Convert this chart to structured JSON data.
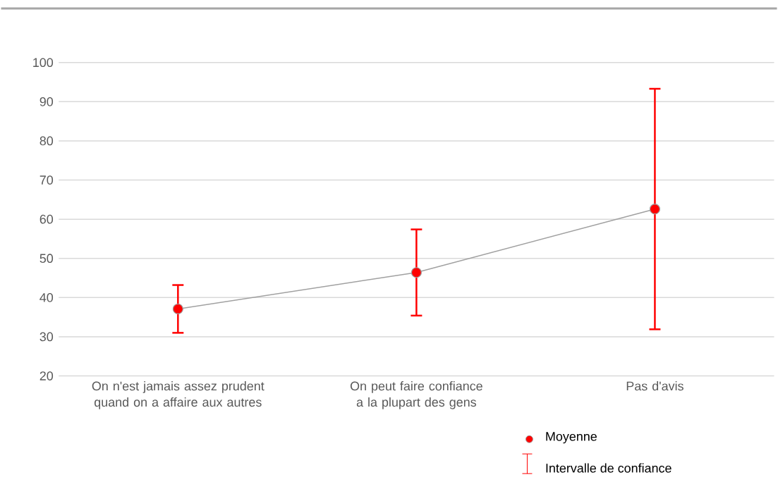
{
  "chart_data": {
    "type": "line",
    "categories": [
      "On n'est jamais assez prudent quand on a affaire aux autres",
      "On peut faire confiance a la plupart des gens",
      "Pas d'avis"
    ],
    "series": [
      {
        "name": "Moyenne",
        "color": "#ff0000",
        "values": [
          37.1,
          46.4,
          62.6
        ],
        "errors": [
          [
            31.0,
            43.2
          ],
          [
            35.4,
            57.4
          ],
          [
            31.9,
            93.3
          ]
        ]
      }
    ],
    "annotations": [
      "Intervalle de confiance"
    ],
    "ylim": [
      20,
      100
    ],
    "yticks": [
      20,
      30,
      40,
      50,
      60,
      70,
      80,
      90,
      100
    ],
    "grid": "y",
    "legend": "bottom",
    "marker": "circle",
    "line_style": "solid"
  }
}
